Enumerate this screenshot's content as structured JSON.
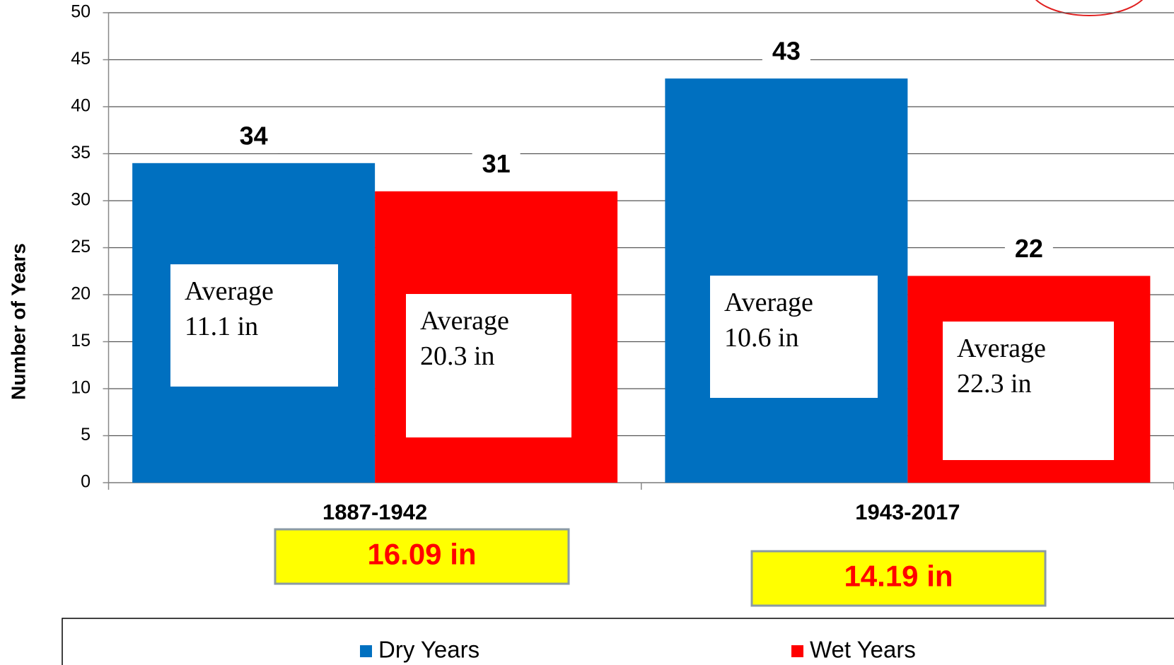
{
  "chart_data": {
    "type": "bar",
    "y_label": "Number of Years",
    "categories": [
      "1887-1942",
      "1943-2017"
    ],
    "series": [
      {
        "name": "Dry Years",
        "color": "#0070c0",
        "values": [
          34,
          43
        ]
      },
      {
        "name": "Wet Years",
        "color": "#ff0000",
        "values": [
          31,
          22
        ]
      }
    ],
    "annotations": [
      [
        {
          "line1": "Average",
          "line2": "11.1 in"
        },
        {
          "line1": "Average",
          "line2": "10.6 in"
        }
      ],
      [
        {
          "line1": "Average",
          "line2": "20.3 in"
        },
        {
          "line1": "Average",
          "line2": "22.3 in"
        }
      ]
    ],
    "period_averages": [
      "16.09 in",
      "14.19 in"
    ],
    "ylim": [
      0,
      50
    ],
    "yticks": [
      0,
      5,
      10,
      15,
      20,
      25,
      30,
      35,
      40,
      45,
      50
    ],
    "grid": true,
    "legend": "bottom"
  }
}
